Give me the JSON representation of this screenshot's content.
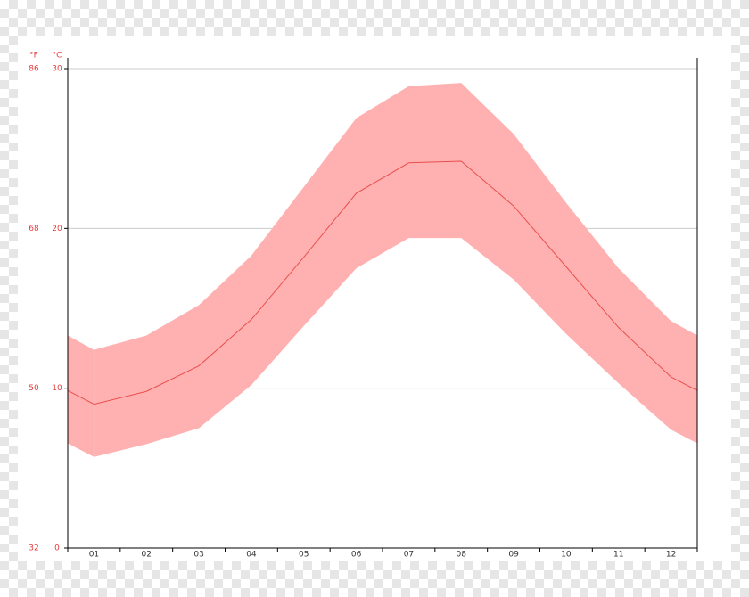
{
  "chart_data": {
    "type": "line",
    "y_label": "°C",
    "y2_label": "°F",
    "categories": [
      "01",
      "02",
      "03",
      "04",
      "05",
      "06",
      "07",
      "08",
      "09",
      "10",
      "11",
      "12"
    ],
    "series": [
      {
        "color": "#e8504f",
        "values": [
          9.0,
          9.8,
          11.4,
          14.3,
          18.2,
          22.2,
          24.1,
          24.2,
          21.4,
          17.6,
          13.8,
          10.7
        ]
      }
    ],
    "range": {
      "color": "#ffb0b0",
      "high": [
        12.4,
        13.3,
        15.2,
        18.3,
        22.6,
        26.9,
        28.9,
        29.1,
        25.9,
        21.6,
        17.5,
        14.2
      ],
      "low": [
        5.7,
        6.5,
        7.5,
        10.2,
        13.9,
        17.5,
        19.4,
        19.4,
        16.8,
        13.4,
        10.3,
        7.4
      ]
    },
    "ylim": [
      0,
      30
    ],
    "yticks": [
      0,
      10,
      20,
      30
    ],
    "y2lim": [
      32,
      86
    ],
    "y2ticks": [
      32,
      50,
      68,
      86
    ],
    "grid": true,
    "tick_color": "#e33b3b"
  }
}
